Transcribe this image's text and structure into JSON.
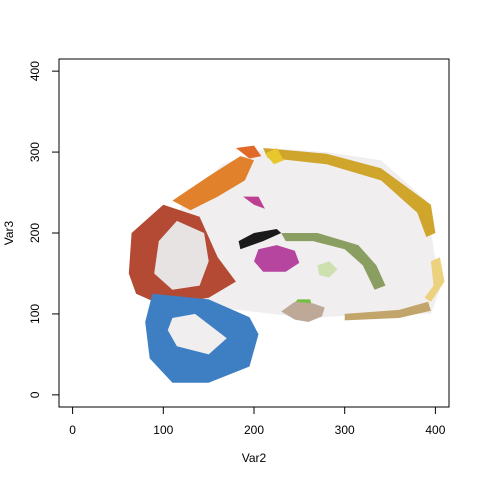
{
  "chart_data": {
    "type": "scatter",
    "title": "",
    "xlabel": "Var2",
    "ylabel": "Var3",
    "xlim": [
      -15,
      415
    ],
    "ylim": [
      -15,
      415
    ],
    "xticks": [
      0,
      100,
      200,
      300,
      400
    ],
    "yticks": [
      0,
      100,
      200,
      300,
      400
    ],
    "grid": false,
    "legend": "none",
    "regions": [
      {
        "color": "#f0eeee",
        "points": [
          [
            108,
            168
          ],
          [
            120,
            140
          ],
          [
            160,
            108
          ],
          [
            260,
            95
          ],
          [
            340,
            100
          ],
          [
            395,
            100
          ],
          [
            405,
            130
          ],
          [
            390,
            240
          ],
          [
            340,
            290
          ],
          [
            280,
            300
          ],
          [
            215,
            305
          ],
          [
            165,
            285
          ],
          [
            120,
            235
          ]
        ]
      },
      {
        "color": "#b44a33",
        "points": [
          [
            62,
            150
          ],
          [
            65,
            200
          ],
          [
            100,
            235
          ],
          [
            140,
            220
          ],
          [
            160,
            170
          ],
          [
            180,
            140
          ],
          [
            150,
            120
          ],
          [
            100,
            110
          ],
          [
            70,
            125
          ]
        ]
      },
      {
        "color": "#e8e3e3",
        "points": [
          [
            90,
            150
          ],
          [
            95,
            190
          ],
          [
            115,
            215
          ],
          [
            145,
            200
          ],
          [
            150,
            165
          ],
          [
            140,
            135
          ],
          [
            110,
            130
          ]
        ]
      },
      {
        "color": "#3e7fc3",
        "points": [
          [
            88,
            125
          ],
          [
            150,
            118
          ],
          [
            195,
            96
          ],
          [
            205,
            75
          ],
          [
            195,
            35
          ],
          [
            150,
            15
          ],
          [
            110,
            15
          ],
          [
            85,
            45
          ],
          [
            80,
            90
          ]
        ]
      },
      {
        "color": "#f0eeee",
        "points": [
          [
            110,
            95
          ],
          [
            135,
            100
          ],
          [
            170,
            70
          ],
          [
            150,
            50
          ],
          [
            115,
            60
          ],
          [
            105,
            80
          ]
        ]
      },
      {
        "color": "#e1812c",
        "points": [
          [
            110,
            240
          ],
          [
            150,
            270
          ],
          [
            185,
            295
          ],
          [
            200,
            290
          ],
          [
            190,
            265
          ],
          [
            160,
            245
          ],
          [
            130,
            228
          ]
        ]
      },
      {
        "color": "#cfa52b",
        "points": [
          [
            210,
            305
          ],
          [
            280,
            298
          ],
          [
            340,
            280
          ],
          [
            395,
            235
          ],
          [
            400,
            200
          ],
          [
            390,
            195
          ],
          [
            380,
            225
          ],
          [
            340,
            265
          ],
          [
            280,
            285
          ],
          [
            215,
            293
          ]
        ]
      },
      {
        "color": "#ecd27f",
        "points": [
          [
            395,
            115
          ],
          [
            410,
            140
          ],
          [
            405,
            170
          ],
          [
            395,
            165
          ],
          [
            398,
            135
          ],
          [
            388,
            120
          ]
        ]
      },
      {
        "color": "#c2a56b",
        "points": [
          [
            300,
            100
          ],
          [
            360,
            105
          ],
          [
            392,
            115
          ],
          [
            395,
            104
          ],
          [
            360,
            95
          ],
          [
            300,
            92
          ]
        ]
      },
      {
        "color": "#1a1a1a",
        "points": [
          [
            183,
            190
          ],
          [
            200,
            200
          ],
          [
            225,
            205
          ],
          [
            230,
            200
          ],
          [
            210,
            190
          ],
          [
            185,
            180
          ]
        ]
      },
      {
        "color": "#8a9e61",
        "points": [
          [
            230,
            200
          ],
          [
            270,
            200
          ],
          [
            315,
            185
          ],
          [
            335,
            160
          ],
          [
            345,
            135
          ],
          [
            333,
            130
          ],
          [
            320,
            160
          ],
          [
            300,
            180
          ],
          [
            265,
            190
          ],
          [
            235,
            190
          ]
        ]
      },
      {
        "color": "#b5459f",
        "points": [
          [
            200,
            165
          ],
          [
            205,
            180
          ],
          [
            225,
            185
          ],
          [
            245,
            178
          ],
          [
            250,
            163
          ],
          [
            235,
            152
          ],
          [
            210,
            152
          ]
        ]
      },
      {
        "color": "#cfe0b0",
        "points": [
          [
            270,
            160
          ],
          [
            283,
            165
          ],
          [
            292,
            155
          ],
          [
            283,
            145
          ],
          [
            272,
            148
          ]
        ]
      },
      {
        "color": "#75bf3e",
        "points": [
          [
            240,
            105
          ],
          [
            248,
            118
          ],
          [
            262,
            118
          ],
          [
            265,
            105
          ],
          [
            255,
            98
          ]
        ]
      },
      {
        "color": "#bea999",
        "points": [
          [
            230,
            103
          ],
          [
            245,
            93
          ],
          [
            260,
            90
          ],
          [
            275,
            97
          ],
          [
            278,
            108
          ],
          [
            265,
            113
          ],
          [
            245,
            115
          ]
        ]
      },
      {
        "color": "#bd3f8f",
        "points": [
          [
            188,
            245
          ],
          [
            200,
            235
          ],
          [
            212,
            230
          ],
          [
            205,
            245
          ]
        ]
      },
      {
        "color": "#e16a28",
        "points": [
          [
            180,
            305
          ],
          [
            200,
            308
          ],
          [
            208,
            295
          ],
          [
            195,
            292
          ]
        ]
      },
      {
        "color": "#e8c62e",
        "points": [
          [
            212,
            298
          ],
          [
            225,
            305
          ],
          [
            233,
            290
          ],
          [
            222,
            285
          ]
        ]
      }
    ]
  }
}
